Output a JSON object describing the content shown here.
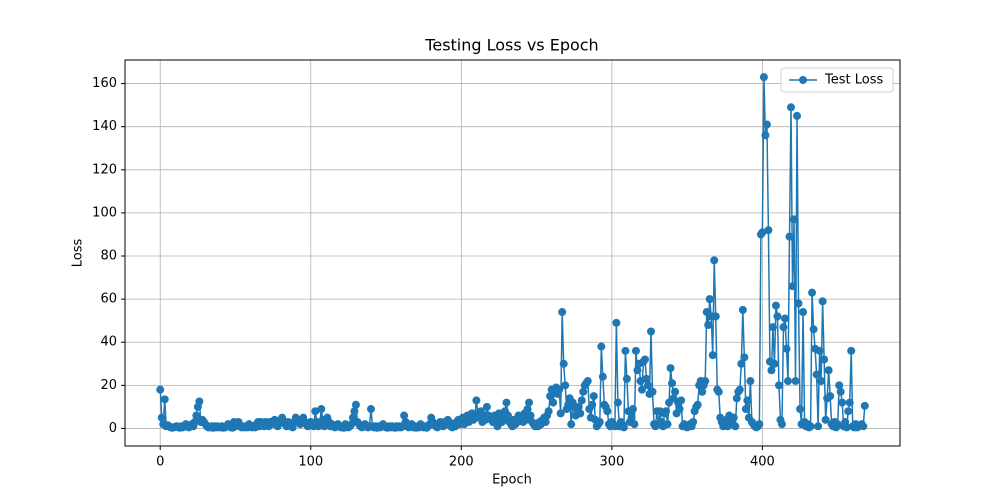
{
  "chart_data": {
    "type": "line",
    "title": "Testing Loss vs Epoch",
    "xlabel": "Epoch",
    "ylabel": "Loss",
    "x": [
      0,
      1,
      2,
      3,
      4,
      5,
      6,
      7,
      8,
      9,
      10,
      11,
      12,
      13,
      14,
      15,
      16,
      17,
      18,
      19,
      20,
      21,
      22,
      23,
      24,
      25,
      26,
      27,
      28,
      29,
      30,
      31,
      32,
      33,
      34,
      35,
      36,
      37,
      38,
      39,
      40,
      41,
      42,
      43,
      44,
      45,
      46,
      47,
      48,
      49,
      50,
      51,
      52,
      53,
      54,
      55,
      56,
      57,
      58,
      59,
      60,
      61,
      62,
      63,
      64,
      65,
      66,
      67,
      68,
      69,
      70,
      71,
      72,
      73,
      74,
      75,
      76,
      77,
      78,
      79,
      80,
      81,
      82,
      83,
      84,
      85,
      86,
      87,
      88,
      89,
      90,
      91,
      92,
      93,
      94,
      95,
      96,
      97,
      98,
      99,
      100,
      101,
      102,
      103,
      104,
      105,
      106,
      107,
      108,
      109,
      110,
      111,
      112,
      113,
      114,
      115,
      116,
      117,
      118,
      119,
      120,
      121,
      122,
      123,
      124,
      125,
      126,
      127,
      128,
      129,
      130,
      131,
      132,
      133,
      134,
      135,
      136,
      137,
      138,
      139,
      140,
      141,
      142,
      143,
      144,
      145,
      146,
      147,
      148,
      149,
      150,
      151,
      152,
      153,
      154,
      155,
      156,
      157,
      158,
      159,
      160,
      161,
      162,
      163,
      164,
      165,
      166,
      167,
      168,
      169,
      170,
      171,
      172,
      173,
      174,
      175,
      176,
      177,
      178,
      179,
      180,
      181,
      182,
      183,
      184,
      185,
      186,
      187,
      188,
      189,
      190,
      191,
      192,
      193,
      194,
      195,
      196,
      197,
      198,
      199,
      200,
      201,
      202,
      203,
      204,
      205,
      206,
      207,
      208,
      209,
      210,
      211,
      212,
      213,
      214,
      215,
      216,
      217,
      218,
      219,
      220,
      221,
      222,
      223,
      224,
      225,
      226,
      227,
      228,
      229,
      230,
      231,
      232,
      233,
      234,
      235,
      236,
      237,
      238,
      239,
      240,
      241,
      242,
      243,
      244,
      245,
      246,
      247,
      248,
      249,
      250,
      251,
      252,
      253,
      254,
      255,
      256,
      257,
      258,
      259,
      260,
      261,
      262,
      263,
      264,
      265,
      266,
      267,
      268,
      269,
      270,
      271,
      272,
      273,
      274,
      275,
      276,
      277,
      278,
      279,
      280,
      281,
      282,
      283,
      284,
      285,
      286,
      287,
      288,
      289,
      290,
      291,
      292,
      293,
      294,
      295,
      296,
      297,
      298,
      299,
      300,
      301,
      302,
      303,
      304,
      305,
      306,
      307,
      308,
      309,
      310,
      311,
      312,
      313,
      314,
      315,
      316,
      317,
      318,
      319,
      320,
      321,
      322,
      323,
      324,
      325,
      326,
      327,
      328,
      329,
      330,
      331,
      332,
      333,
      334,
      335,
      336,
      337,
      338,
      339,
      340,
      341,
      342,
      343,
      344,
      345,
      346,
      347,
      348,
      349,
      350,
      351,
      352,
      353,
      354,
      355,
      356,
      357,
      358,
      359,
      360,
      361,
      362,
      363,
      364,
      365,
      366,
      367,
      368,
      369,
      370,
      371,
      372,
      373,
      374,
      375,
      376,
      377,
      378,
      379,
      380,
      381,
      382,
      383,
      384,
      385,
      386,
      387,
      388,
      389,
      390,
      391,
      392,
      393,
      394,
      395,
      396,
      397,
      398,
      399,
      400,
      401,
      402,
      403,
      404,
      405,
      406,
      407,
      408,
      409,
      410,
      411,
      412,
      413,
      414,
      415,
      416,
      417,
      418,
      419,
      420,
      421,
      422,
      423,
      424,
      425,
      426,
      427,
      428,
      429,
      430,
      431,
      432,
      433,
      434,
      435,
      436,
      437,
      438,
      439,
      440,
      441,
      442,
      443,
      444,
      445,
      446,
      447,
      448,
      449,
      450,
      451,
      452,
      453,
      454,
      455,
      456,
      457,
      458,
      459,
      460,
      461,
      462,
      463,
      464,
      465,
      466,
      467,
      468
    ],
    "series": [
      {
        "name": "Test Loss",
        "color": "#1f77b4",
        "values": [
          18,
          5,
          2,
          13.5,
          1,
          1.5,
          1,
          0.5,
          0.3,
          0.5,
          0.8,
          1,
          0.5,
          0.3,
          1,
          0.5,
          1,
          2,
          1,
          0.5,
          1,
          2,
          1,
          3,
          6,
          10,
          12.5,
          3,
          4,
          3,
          2,
          1,
          0.5,
          0.5,
          1,
          0.3,
          1,
          0.5,
          1,
          0.5,
          0.5,
          1,
          0.3,
          0.5,
          1,
          2,
          1,
          0.5,
          0.3,
          3,
          1,
          2,
          3,
          1,
          0.5,
          1,
          0.5,
          1,
          0.5,
          2,
          1,
          0.5,
          1,
          0.5,
          2,
          3,
          1,
          3,
          2,
          1,
          3,
          2,
          1,
          3,
          2,
          3,
          4,
          2,
          1,
          3,
          4,
          5,
          3,
          2,
          1,
          3,
          2,
          1,
          0.5,
          3,
          5,
          4,
          3,
          2,
          4,
          5,
          3,
          2,
          1,
          2,
          3,
          2,
          1,
          8,
          3,
          1,
          2,
          9,
          4,
          1,
          2,
          5,
          3,
          1,
          2,
          1,
          0.5,
          1,
          2,
          1,
          0.5,
          1,
          0.3,
          2,
          1,
          0.5,
          1,
          2,
          5,
          8,
          11,
          3,
          2,
          1,
          0.5,
          1,
          2,
          1,
          0.5,
          1,
          9,
          1,
          0.5,
          1,
          0.3,
          1,
          0.5,
          1,
          2,
          1,
          0.5,
          0.3,
          1,
          0.5,
          1,
          0.5,
          0.3,
          1,
          0.5,
          1,
          0.5,
          1,
          6,
          3,
          1,
          0.5,
          1,
          2,
          0.5,
          1,
          0.3,
          1,
          0.5,
          2,
          1,
          0.5,
          1,
          0.3,
          1,
          2,
          5,
          3,
          2,
          1,
          0.5,
          1,
          3,
          2,
          1,
          3,
          2,
          4,
          3,
          1,
          0.5,
          2,
          1,
          3,
          4,
          2,
          3,
          5,
          2,
          4,
          6,
          3,
          5,
          7,
          4,
          6,
          13,
          7,
          5,
          8,
          3,
          6,
          4,
          10,
          6,
          5,
          4,
          3,
          6,
          5,
          1,
          7,
          5,
          3,
          4,
          8,
          12,
          6,
          3,
          2,
          1,
          4,
          2,
          3,
          6,
          4,
          5,
          3,
          7,
          4,
          9,
          12,
          6,
          3,
          2,
          1,
          2,
          1,
          3,
          2,
          4,
          5,
          3,
          6,
          8,
          15,
          18,
          12,
          17,
          19,
          16,
          18,
          7,
          54,
          30,
          20,
          9,
          11,
          14,
          2,
          12,
          10,
          6,
          8,
          10,
          7,
          13,
          17,
          20,
          21,
          22,
          9,
          5,
          11,
          15,
          4,
          1,
          2,
          3,
          38,
          24,
          11,
          10,
          8,
          2,
          1,
          3,
          2,
          1,
          49,
          12,
          1,
          3,
          2,
          0.5,
          36,
          23,
          8,
          3,
          5,
          9,
          2,
          36,
          27,
          30,
          22,
          18,
          31,
          32,
          23,
          20,
          16,
          45,
          17,
          2,
          1,
          8,
          2,
          8,
          3,
          1,
          7,
          8,
          2,
          12,
          28,
          21,
          14,
          17,
          7,
          12,
          9,
          13,
          1,
          2,
          1,
          0.5,
          1,
          2,
          1,
          3,
          8,
          10,
          11,
          20,
          22,
          17,
          20,
          22,
          54,
          48,
          60,
          52,
          34,
          78,
          52,
          18,
          17,
          5,
          3,
          1,
          2,
          4,
          1,
          6,
          3,
          2,
          5,
          1,
          14,
          17,
          18,
          30,
          55,
          33,
          9,
          13,
          5,
          22,
          3,
          2,
          1,
          0.5,
          1,
          2,
          90,
          91,
          163,
          136,
          141,
          92,
          31,
          27,
          47,
          30,
          57,
          52,
          20,
          4,
          2,
          47,
          51,
          37,
          22,
          89,
          149,
          66,
          97,
          22,
          145,
          58,
          9,
          2,
          54,
          3,
          1,
          2,
          0.5,
          1,
          63,
          46,
          37,
          25,
          1,
          36,
          22,
          59,
          32,
          4,
          14,
          27,
          15,
          2,
          1,
          3,
          0.5,
          2,
          20,
          17,
          12,
          1,
          3,
          0.5,
          8,
          12,
          36,
          1,
          0.5,
          2,
          0.5,
          1,
          1.5,
          2,
          1,
          10.5
        ]
      }
    ],
    "xlim": [
      -23.4,
      491.4
    ],
    "ylim": [
      -8.14,
      170.94
    ],
    "xticks": [
      0,
      100,
      200,
      300,
      400
    ],
    "yticks": [
      0,
      20,
      40,
      60,
      80,
      100,
      120,
      140,
      160
    ],
    "grid": true,
    "legend": "upper right"
  }
}
